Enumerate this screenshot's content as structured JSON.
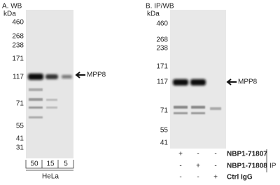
{
  "panel_a": {
    "title": "A. WB",
    "unit": "kDa",
    "markers": [
      "460",
      "268",
      "238",
      "171",
      "117",
      "71",
      "55",
      "41",
      "31"
    ],
    "target": "MPP8",
    "lanes": [
      "50",
      "15",
      "5"
    ],
    "sample": "HeLa"
  },
  "panel_b": {
    "title": "B. IP/WB",
    "unit": "kDa",
    "markers": [
      "460",
      "268",
      "238",
      "171",
      "117",
      "71",
      "55",
      "41"
    ],
    "target": "MPP8",
    "rows": [
      {
        "signs": [
          "+",
          "-",
          "-"
        ],
        "label": "NBP1-71807"
      },
      {
        "signs": [
          "-",
          "+",
          "-"
        ],
        "label": "NBP1-71808"
      },
      {
        "signs": [
          "-",
          "-",
          "+"
        ],
        "label": "Ctrl IgG"
      }
    ],
    "group_label": "IP"
  }
}
